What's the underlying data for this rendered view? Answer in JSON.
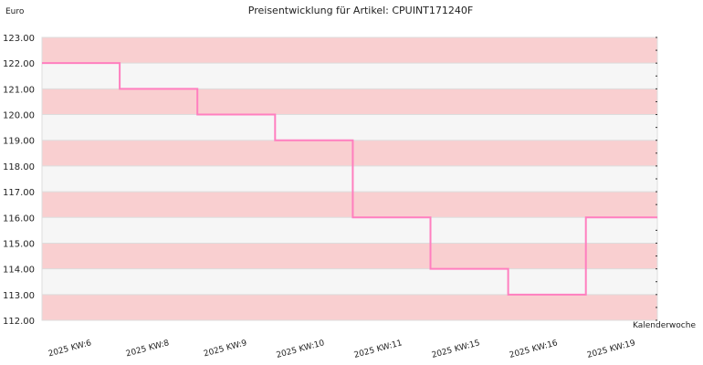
{
  "chart_data": {
    "type": "line",
    "title": "Preisentwicklung für Artikel: CPUINT171240F",
    "ylabel": "Euro",
    "xlabel": "Kalenderwoche",
    "ylim": [
      112.0,
      123.0
    ],
    "yticks": [
      "112.00",
      "113.00",
      "114.00",
      "115.00",
      "116.00",
      "117.00",
      "118.00",
      "119.00",
      "120.00",
      "121.00",
      "122.00",
      "123.00"
    ],
    "categories": [
      "2025 KW:6",
      "2025 KW:8",
      "2025 KW:9",
      "2025 KW:10",
      "2025 KW:11",
      "2025 KW:15",
      "2025 KW:16",
      "2025 KW:19"
    ],
    "series": [
      {
        "values": [
          122.0,
          121.0,
          120.0,
          119.0,
          116.0,
          114.0,
          113.0,
          116.0
        ]
      }
    ],
    "step": true,
    "grid": true,
    "colors": {
      "line": "#ff7fbf",
      "band": "#f9cfd0",
      "plot_bg": "#f6f6f6",
      "gridline": "#dddddd"
    }
  }
}
